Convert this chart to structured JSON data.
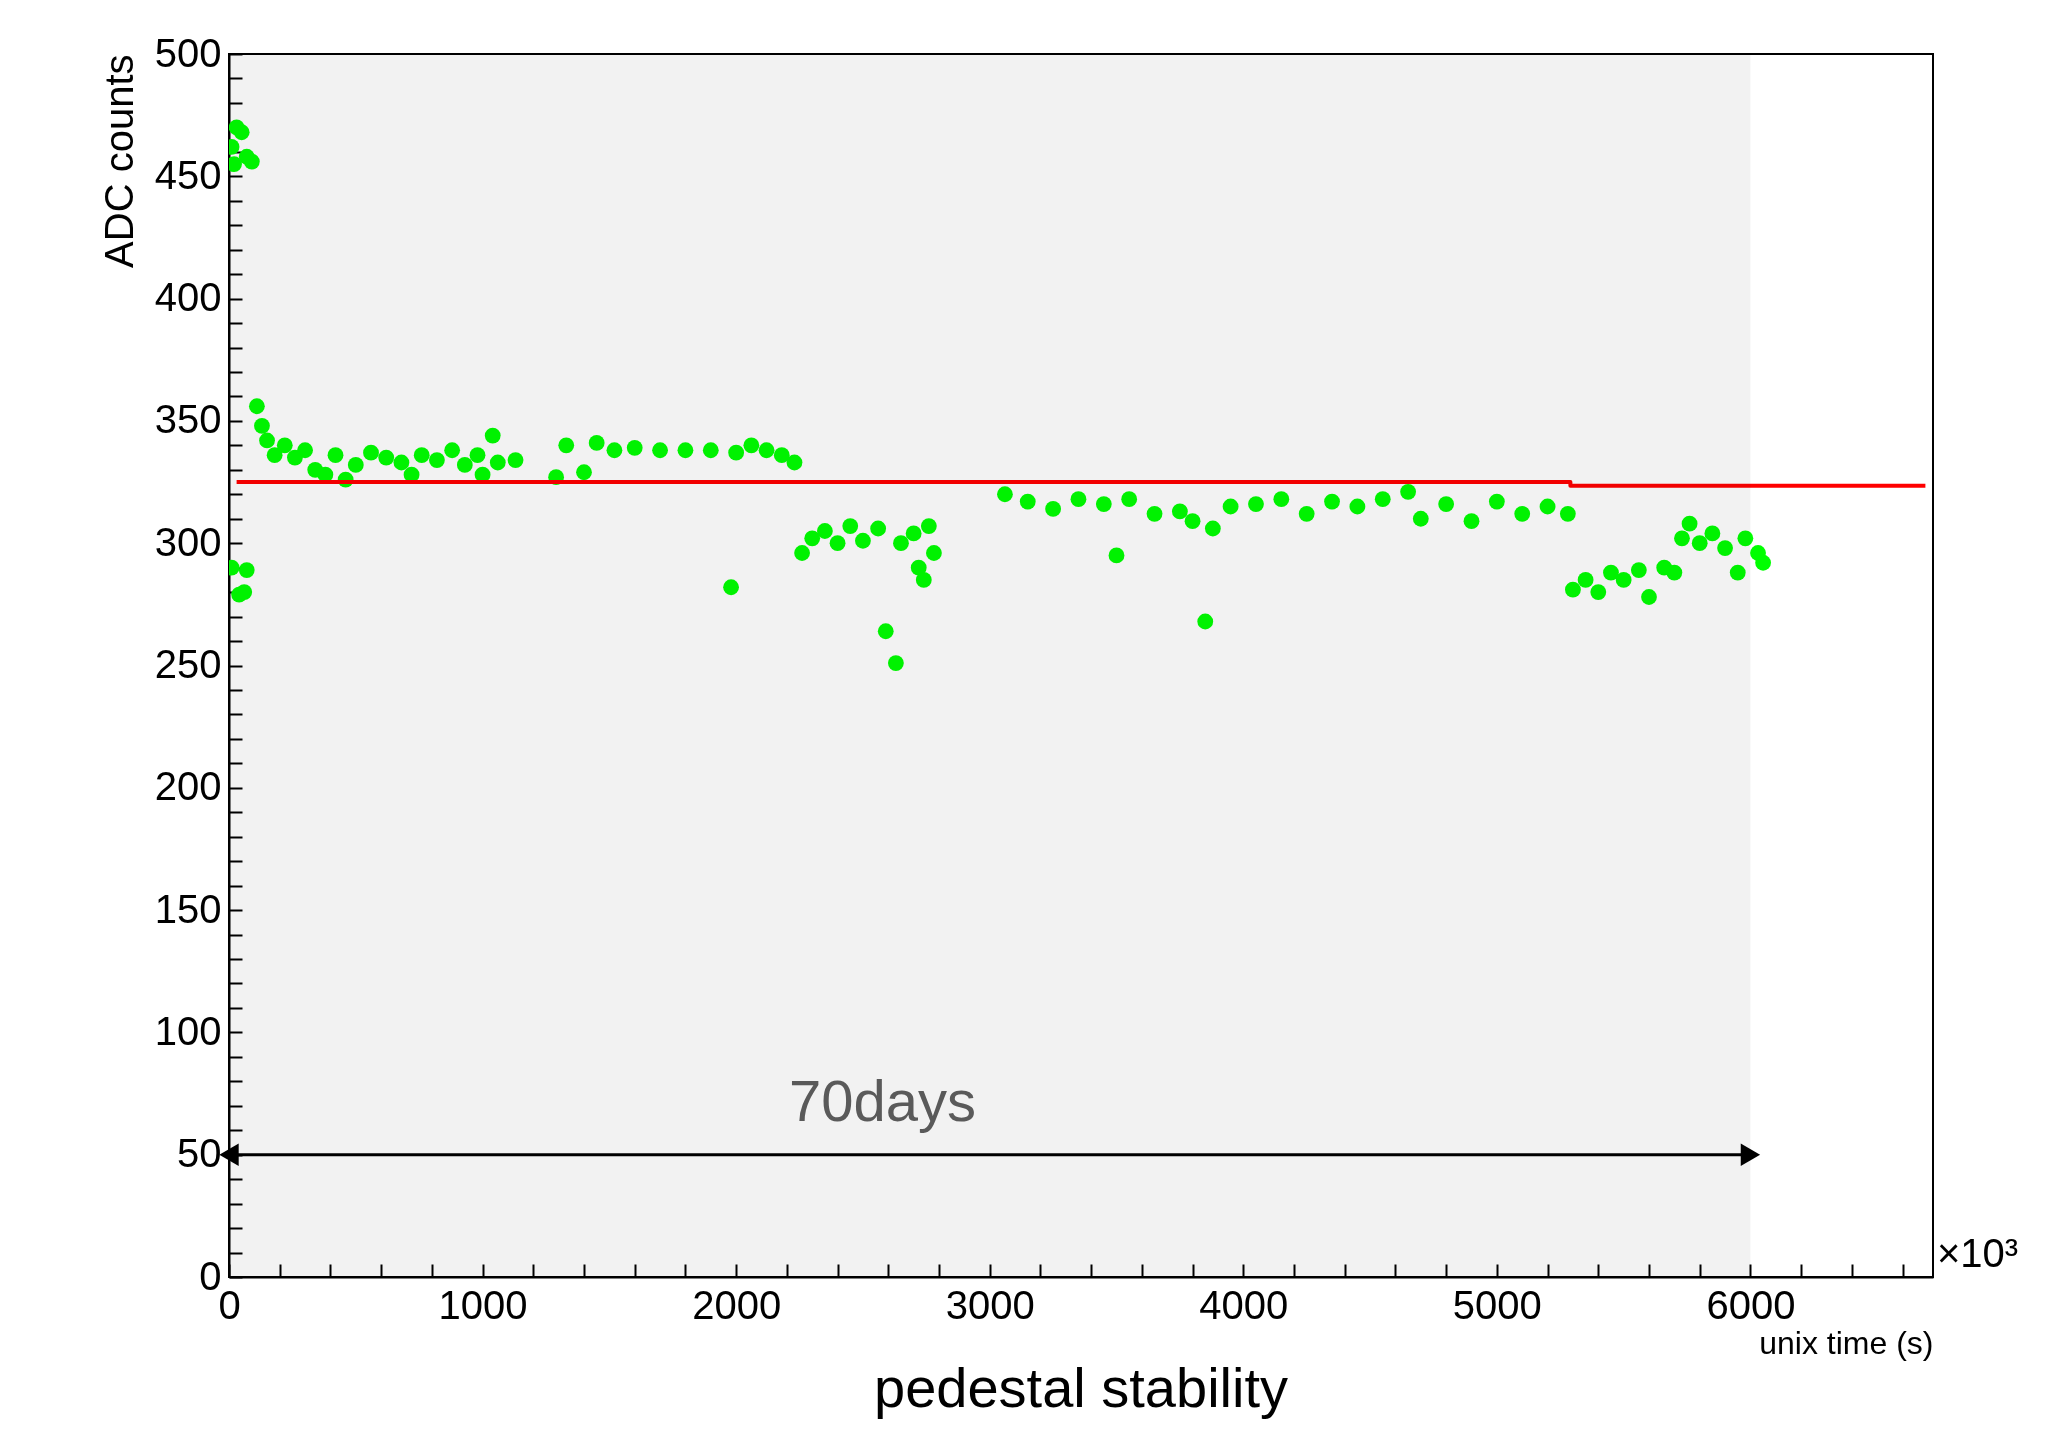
{
  "chart_data": {
    "type": "scatter",
    "title": "pedestal stability",
    "xlabel": "unix time (s)",
    "ylabel": "ADC counts",
    "xlim": [
      0,
      6720
    ],
    "ylim": [
      0,
      500
    ],
    "xticks": [
      0,
      {
        "value": 200,
        "label": null
      },
      {
        "value": 400,
        "label": null
      },
      {
        "value": 600,
        "label": null
      },
      {
        "value": 800,
        "label": null
      },
      1000,
      {
        "value": 1200,
        "label": null
      },
      {
        "value": 1400,
        "label": null
      },
      {
        "value": 1600,
        "label": null
      },
      {
        "value": 1800,
        "label": null
      },
      2000,
      {
        "value": 2200,
        "label": null
      },
      {
        "value": 2400,
        "label": null
      },
      {
        "value": 2600,
        "label": null
      },
      {
        "value": 2800,
        "label": null
      },
      3000,
      {
        "value": 3200,
        "label": null
      },
      {
        "value": 3400,
        "label": null
      },
      {
        "value": 3600,
        "label": null
      },
      {
        "value": 3800,
        "label": null
      },
      4000,
      {
        "value": 4200,
        "label": null
      },
      {
        "value": 4400,
        "label": null
      },
      {
        "value": 4600,
        "label": null
      },
      {
        "value": 4800,
        "label": null
      },
      5000,
      {
        "value": 5200,
        "label": null
      },
      {
        "value": 5400,
        "label": null
      },
      {
        "value": 5600,
        "label": null
      },
      {
        "value": 5800,
        "label": null
      },
      6000,
      {
        "value": 6200,
        "label": null
      },
      {
        "value": 6400,
        "label": null
      },
      {
        "value": 6600,
        "label": null
      }
    ],
    "yticks": [
      0,
      {
        "value": 10,
        "label": null
      },
      {
        "value": 20,
        "label": null
      },
      {
        "value": 30,
        "label": null
      },
      {
        "value": 40,
        "label": null
      },
      50,
      {
        "value": 60,
        "label": null
      },
      {
        "value": 70,
        "label": null
      },
      {
        "value": 80,
        "label": null
      },
      {
        "value": 90,
        "label": null
      },
      100,
      {
        "value": 110,
        "label": null
      },
      {
        "value": 120,
        "label": null
      },
      {
        "value": 130,
        "label": null
      },
      {
        "value": 140,
        "label": null
      },
      150,
      {
        "value": 160,
        "label": null
      },
      {
        "value": 170,
        "label": null
      },
      {
        "value": 180,
        "label": null
      },
      {
        "value": 190,
        "label": null
      },
      200,
      {
        "value": 210,
        "label": null
      },
      {
        "value": 220,
        "label": null
      },
      {
        "value": 230,
        "label": null
      },
      {
        "value": 240,
        "label": null
      },
      250,
      {
        "value": 260,
        "label": null
      },
      {
        "value": 270,
        "label": null
      },
      {
        "value": 280,
        "label": null
      },
      {
        "value": 290,
        "label": null
      },
      300,
      {
        "value": 310,
        "label": null
      },
      {
        "value": 320,
        "label": null
      },
      {
        "value": 330,
        "label": null
      },
      {
        "value": 340,
        "label": null
      },
      350,
      {
        "value": 360,
        "label": null
      },
      {
        "value": 370,
        "label": null
      },
      {
        "value": 380,
        "label": null
      },
      {
        "value": 390,
        "label": null
      },
      400,
      {
        "value": 410,
        "label": null
      },
      {
        "value": 420,
        "label": null
      },
      {
        "value": 430,
        "label": null
      },
      {
        "value": 440,
        "label": null
      },
      450,
      {
        "value": 460,
        "label": null
      },
      {
        "value": 470,
        "label": null
      },
      {
        "value": 480,
        "label": null
      },
      {
        "value": 490,
        "label": null
      },
      500
    ],
    "annotations": [
      "×10³"
    ],
    "bands": [
      {
        "axis": "x",
        "from": 0,
        "to": 6000,
        "label": "70days",
        "color": "#000000"
      }
    ],
    "series": [
      {
        "color": "#00ff00",
        "marker": "circle",
        "x": [
          10,
          30,
          50,
          70,
          90,
          20,
          10,
          40,
          70,
          60,
          110,
          130,
          150,
          180,
          220,
          260,
          300,
          340,
          380,
          420,
          460,
          500,
          560,
          620,
          680,
          720,
          760,
          820,
          880,
          930,
          980,
          1000,
          1040,
          1060,
          1130,
          1290,
          1330,
          1400,
          1450,
          1520,
          1600,
          1700,
          1800,
          1900,
          2000,
          2060,
          2120,
          2180,
          2230,
          1980,
          2260,
          2300,
          2350,
          2400,
          2450,
          2500,
          2560,
          2590,
          2630,
          2650,
          2700,
          2720,
          2740,
          2760,
          2780,
          3060,
          3150,
          3250,
          3350,
          3450,
          3500,
          3550,
          3650,
          3750,
          3800,
          3850,
          3880,
          3950,
          4050,
          4150,
          4250,
          4350,
          4450,
          4550,
          4650,
          4700,
          4800,
          4900,
          5000,
          5100,
          5200,
          5280,
          5300,
          5350,
          5400,
          5450,
          5500,
          5560,
          5600,
          5660,
          5700,
          5730,
          5760,
          5800,
          5850,
          5900,
          5950,
          5980,
          6030,
          6050
        ],
        "values": [
          462,
          470,
          468,
          458,
          456,
          455,
          290,
          279,
          289,
          280,
          356,
          348,
          342,
          336,
          340,
          335,
          338,
          330,
          328,
          336,
          326,
          332,
          337,
          335,
          333,
          328,
          336,
          334,
          338,
          332,
          336,
          328,
          344,
          333,
          334,
          327,
          340,
          329,
          341,
          338,
          339,
          338,
          338,
          338,
          337,
          340,
          338,
          336,
          333,
          282,
          296,
          302,
          305,
          300,
          307,
          301,
          306,
          264,
          251,
          300,
          304,
          290,
          285,
          307,
          296,
          320,
          317,
          314,
          318,
          316,
          295,
          318,
          312,
          313,
          309,
          268,
          306,
          315,
          316,
          318,
          312,
          317,
          315,
          318,
          321,
          310,
          316,
          309,
          317,
          312,
          315,
          312,
          281,
          285,
          280,
          288,
          285,
          289,
          278,
          290,
          288,
          302,
          308,
          300,
          304,
          298,
          288,
          302,
          296,
          292
        ]
      },
      {
        "type": "line",
        "color": "#ff0000",
        "x": [
          30,
          5290,
          5290,
          6690
        ],
        "values": [
          325,
          325,
          323.5,
          323.5
        ]
      }
    ]
  }
}
